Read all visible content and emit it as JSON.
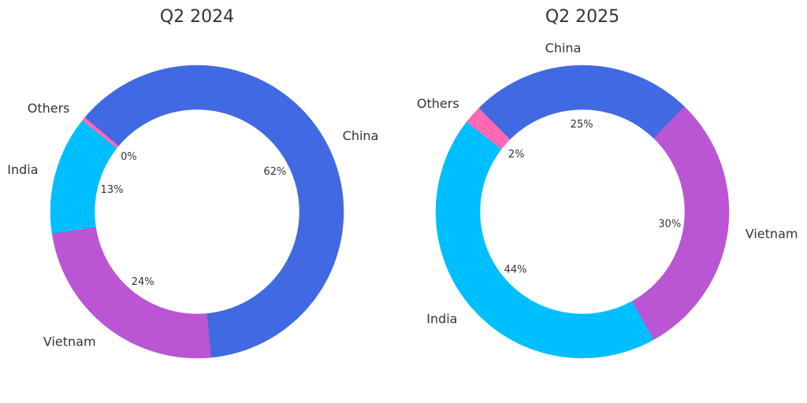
{
  "chart_data": [
    {
      "type": "pie",
      "variant": "donut",
      "title": "Q2 2024",
      "start_angle": 140,
      "clockwise": true,
      "slices": [
        {
          "label": "China",
          "value": 62,
          "pct_label": "62%",
          "color": "#4169E1"
        },
        {
          "label": "Vietnam",
          "value": 24,
          "pct_label": "24%",
          "color": "#BA55D3"
        },
        {
          "label": "India",
          "value": 13,
          "pct_label": "13%",
          "color": "#00BFFF"
        },
        {
          "label": "Others",
          "value": 0.4,
          "pct_label": "0%",
          "color": "#FF69B4"
        }
      ]
    },
    {
      "type": "pie",
      "variant": "donut",
      "title": "Q2 2025",
      "start_angle": 135,
      "clockwise": true,
      "slices": [
        {
          "label": "China",
          "value": 25,
          "pct_label": "25%",
          "color": "#4169E1"
        },
        {
          "label": "Vietnam",
          "value": 30,
          "pct_label": "30%",
          "color": "#BA55D3"
        },
        {
          "label": "India",
          "value": 44,
          "pct_label": "44%",
          "color": "#00BFFF"
        },
        {
          "label": "Others",
          "value": 2,
          "pct_label": "2%",
          "color": "#FF69B4"
        }
      ]
    }
  ]
}
